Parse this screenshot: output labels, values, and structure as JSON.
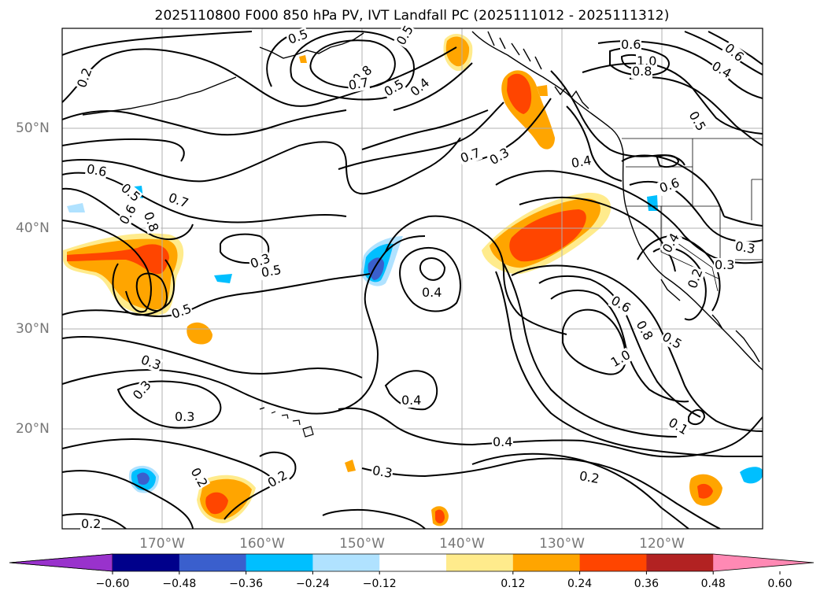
{
  "title": "2025110800 F000 850 hPa PV, IVT Landfall PC (2025111012 - 2025111312)",
  "lat_labels": [
    "50°N",
    "40°N",
    "30°N",
    "20°N"
  ],
  "lon_labels": [
    "170°W",
    "160°W",
    "150°W",
    "140°W",
    "130°W",
    "120°W"
  ],
  "contour_labels": [
    "0.2",
    "0.5",
    "0.5",
    "0.8",
    "0.7",
    "0.5",
    "0.4",
    "0.6",
    "1.0",
    "0.8",
    "0.6",
    "0.4",
    "0.5",
    "0.7",
    "0.3",
    "0.4",
    "0.6",
    "0.6",
    "0.5",
    "0.6",
    "0.8",
    "0.7",
    "0.3",
    "0.5",
    "0.4",
    "0.5",
    "0.3",
    "0.3",
    "0.3",
    "0.4",
    "0.4",
    "0.3",
    "0.2",
    "0.2",
    "0.2",
    "0.3",
    "0.2",
    "0.6",
    "0.8",
    "0.5",
    "1.0",
    "0.4",
    "0.2",
    "0.3",
    "0.1",
    "0.2"
  ],
  "colorbar": {
    "ticks": [
      "−0.60",
      "−0.48",
      "−0.36",
      "−0.24",
      "−0.12",
      "0.12",
      "0.24",
      "0.36",
      "0.48",
      "0.60"
    ],
    "colors": [
      "#9932cc",
      "#00008b",
      "#3a5fcd",
      "#00bfff",
      "#b0e2ff",
      "#ffffff",
      "#ffeb8c",
      "#ffa500",
      "#ff4500",
      "#b22222",
      "#ff89b4",
      "#ff89b4"
    ]
  }
}
